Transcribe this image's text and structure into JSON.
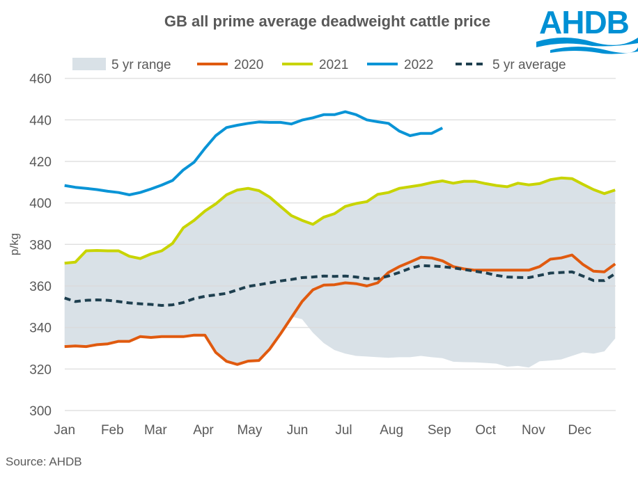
{
  "source": "Source: AHDB",
  "logo_text": "AHDB",
  "colors": {
    "range": "#d9e1e7",
    "2020": "#e05a0f",
    "2021": "#c8d400",
    "2022": "#0a94d6",
    "average": "#1e3f4f",
    "logo": "#0090d4"
  },
  "chart_data": {
    "type": "line",
    "title": "GB all prime average deadweight cattle price",
    "ylabel": "p/kg",
    "xlabel": "",
    "ylim": [
      300,
      460
    ],
    "yticks": [
      300,
      320,
      340,
      360,
      380,
      400,
      420,
      440,
      460
    ],
    "x_unit": "week of year",
    "xtick_labels": [
      "Jan",
      "Feb",
      "Mar",
      "Apr",
      "May",
      "Jun",
      "Jul",
      "Aug",
      "Sep",
      "Oct",
      "Nov",
      "Dec"
    ],
    "grid": true,
    "legend_position": "top",
    "range": {
      "name": "5 yr range",
      "lower": [
        330.8,
        331.1,
        330.8,
        331.7,
        332.1,
        333.3,
        333.3,
        335.6,
        335.2,
        335.6,
        335.6,
        335.6,
        336.3,
        336.3,
        328,
        323.7,
        322.2,
        323.8,
        324.1,
        329.6,
        336.9,
        345.2,
        344,
        337.5,
        332.5,
        329.1,
        327.4,
        326.3,
        326,
        325.7,
        325.4,
        325.7,
        325.7,
        326.3,
        325.7,
        325.2,
        323.5,
        323.3,
        323.2,
        322.9,
        322.6,
        321.1,
        321.5,
        320.7,
        323.7,
        324.1,
        324.6,
        326.3,
        328,
        327.4,
        328.5,
        334.7
      ],
      "upper": [
        371,
        371.5,
        376.9,
        377.1,
        376.9,
        376.9,
        374.3,
        373.2,
        375.4,
        376.9,
        380.5,
        388,
        391.6,
        396.1,
        399.5,
        403.9,
        406.2,
        407,
        405.9,
        402.8,
        398.3,
        393.9,
        391.6,
        389.7,
        393.1,
        394.8,
        398.3,
        399.7,
        400.6,
        404.1,
        405,
        407,
        407.8,
        408.6,
        409.8,
        410.6,
        409.5,
        410.4,
        410.4,
        409.3,
        408.4,
        407.8,
        409.5,
        408.7,
        409.3,
        411.2,
        412,
        411.7,
        409,
        406.4,
        404.5,
        406.2
      ]
    },
    "series": [
      {
        "name": "2020",
        "values": [
          330.8,
          331.1,
          330.8,
          331.7,
          332.1,
          333.3,
          333.3,
          335.6,
          335.2,
          335.6,
          335.6,
          335.6,
          336.3,
          336.3,
          328,
          323.7,
          322.2,
          323.8,
          324.1,
          329.6,
          336.9,
          344.7,
          352.5,
          358.1,
          360.4,
          360.6,
          361.5,
          361.1,
          360,
          361.5,
          366.5,
          369.3,
          371.5,
          373.8,
          373.5,
          372.1,
          369.3,
          368.2,
          367.6,
          367.6,
          367.6,
          367.6,
          367.6,
          367.6,
          369.3,
          372.9,
          373.5,
          374.9,
          370.4,
          367.1,
          366.8,
          370.6
        ]
      },
      {
        "name": "2021",
        "values": [
          371,
          371.5,
          376.9,
          377.1,
          376.9,
          376.9,
          374.3,
          373.2,
          375.4,
          376.9,
          380.5,
          388,
          391.6,
          396.1,
          399.5,
          403.9,
          406.2,
          407,
          405.9,
          402.8,
          398.3,
          393.9,
          391.6,
          389.7,
          393.1,
          394.8,
          398.3,
          399.7,
          400.6,
          404.1,
          405,
          407,
          407.8,
          408.6,
          409.8,
          410.6,
          409.5,
          410.4,
          410.4,
          409.3,
          408.4,
          407.8,
          409.5,
          408.7,
          409.3,
          411.2,
          412,
          411.7,
          409,
          406.4,
          404.5,
          406.2
        ]
      },
      {
        "name": "2022",
        "values": [
          408.4,
          407.5,
          407,
          406.4,
          405.6,
          405,
          403.9,
          405,
          406.7,
          408.6,
          410.8,
          415.9,
          419.6,
          426.3,
          432.4,
          436.3,
          437.4,
          438.3,
          439,
          438.8,
          438.8,
          438,
          439.9,
          441,
          442.5,
          442.5,
          443.9,
          442.5,
          440,
          439.1,
          438.3,
          434.6,
          432.4,
          433.5,
          433.5,
          436.1
        ]
      },
      {
        "name": "5 yr average",
        "values": [
          354.2,
          352.5,
          353.1,
          353.3,
          353.1,
          352.5,
          351.8,
          351.4,
          351.1,
          350.6,
          350.9,
          352,
          353.9,
          355,
          355.7,
          356.4,
          358.1,
          359.8,
          360.6,
          361.5,
          362.4,
          363.1,
          364,
          364.3,
          364.8,
          364.6,
          364.8,
          364.3,
          363.5,
          363.5,
          364.8,
          366.5,
          368.5,
          369.8,
          369.6,
          369.3,
          368.7,
          367.9,
          367.1,
          366.3,
          365.1,
          364.3,
          364.1,
          364,
          365.1,
          366.2,
          366.5,
          366.8,
          364.8,
          362.6,
          362.6,
          365.9
        ]
      }
    ]
  }
}
